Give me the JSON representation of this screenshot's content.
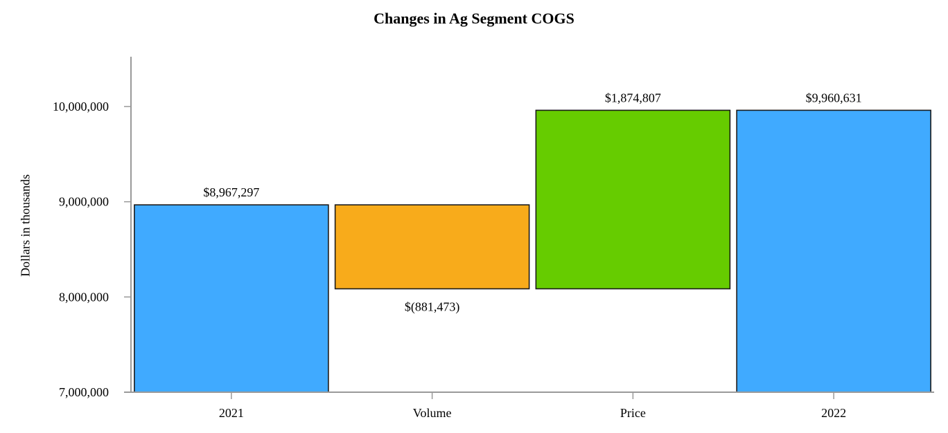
{
  "chart_data": {
    "type": "waterfall",
    "title": "Changes in Ag Segment COGS",
    "xlabel": "",
    "ylabel": "Dollars in thousands",
    "categories": [
      "2021",
      "Volume",
      "Price",
      "2022"
    ],
    "values": [
      8967297,
      -881473,
      1874807,
      9960631
    ],
    "value_labels": [
      "$8,967,297",
      "$(881,473)",
      "$1,874,807",
      "$9,960,631"
    ],
    "bar_types": [
      "total",
      "decrease",
      "increase",
      "total"
    ],
    "colors": [
      "#40aaff",
      "#f8ab1b",
      "#66cc00",
      "#40aaff"
    ],
    "ylim": [
      7000000,
      10500000
    ],
    "yticks": [
      7000000,
      8000000,
      9000000,
      10000000
    ],
    "ytick_labels": [
      "7,000,000",
      "8,000,000",
      "9,000,000",
      "10,000,000"
    ],
    "grid": false,
    "legend": null
  }
}
